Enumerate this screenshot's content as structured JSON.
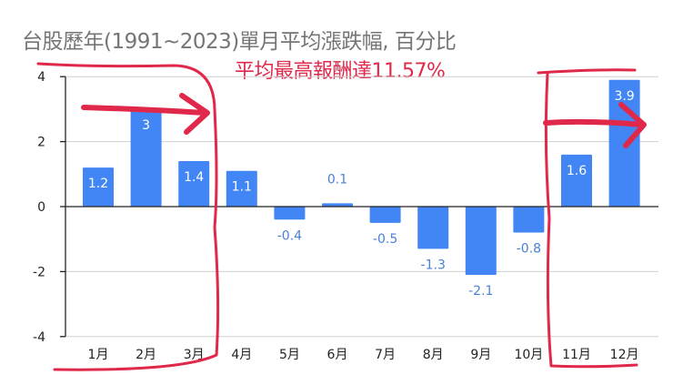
{
  "chart_data": {
    "type": "bar",
    "title": "台股歷年(1991~2023)單月平均漲跌幅, 百分比",
    "annotation": "平均最高報酬達11.57%",
    "categories": [
      "1月",
      "2月",
      "3月",
      "4月",
      "5月",
      "6月",
      "7月",
      "8月",
      "9月",
      "10月",
      "11月",
      "12月"
    ],
    "values": [
      1.2,
      3,
      1.4,
      1.1,
      -0.4,
      0.1,
      -0.5,
      -1.3,
      -2.1,
      -0.8,
      1.6,
      3.9
    ],
    "value_labels": [
      "1.2",
      "3",
      "1.4",
      "1.1",
      "-0.4",
      "0.1",
      "-0.5",
      "-1.3",
      "-2.1",
      "-0.8",
      "1.6",
      "3.9"
    ],
    "yticks": [
      "4",
      "2",
      "0",
      "-2",
      "-4"
    ],
    "ytick_values": [
      4,
      2,
      0,
      -2,
      -4
    ],
    "ylim": [
      -4,
      4
    ],
    "xlabel": "",
    "ylabel": "",
    "grid": true,
    "highlighted_months": [
      "1月",
      "2月",
      "3月",
      "11月",
      "12月"
    ],
    "colors": {
      "bar": "#4285f4",
      "annotation": "#e0284a",
      "title": "#757575"
    }
  }
}
